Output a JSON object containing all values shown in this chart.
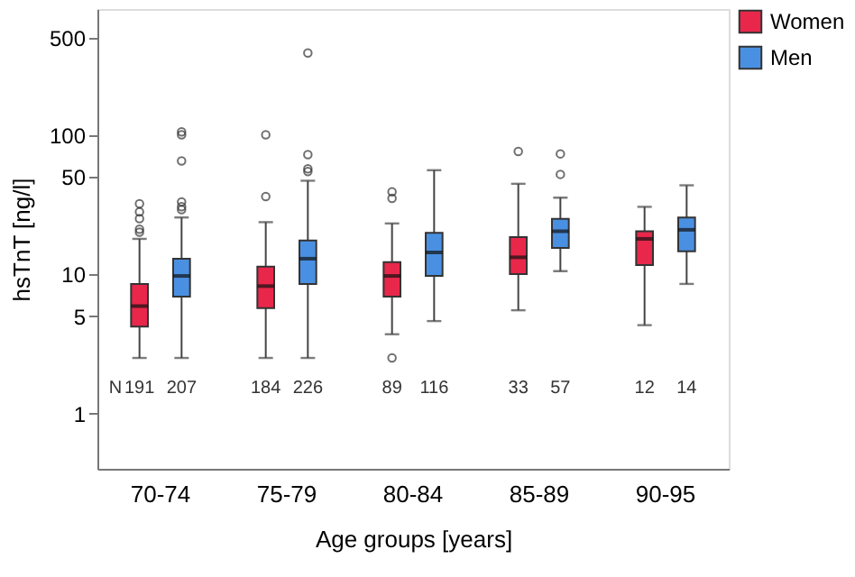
{
  "chart_data": {
    "type": "box",
    "xlabel": "Age groups [years]",
    "ylabel": "hsTnT [ng/l]",
    "categories": [
      "70-74",
      "75-79",
      "80-84",
      "85-89",
      "90-95"
    ],
    "log": true,
    "ylim": [
      0.4,
      800
    ],
    "yticks": [
      1,
      5,
      10,
      50,
      100,
      500
    ],
    "grid": false,
    "legend": "top right",
    "annotations": [
      "N"
    ],
    "series": [
      {
        "name": "Women",
        "color": "#e8274b",
        "value_labels": [
          "191",
          "184",
          "89",
          "33",
          "12"
        ],
        "boxes": [
          {
            "low": 2.5,
            "q1": 4.2,
            "median": 5.9,
            "q3": 8.5,
            "high": 17.9,
            "outliers": [
              20,
              21,
              25,
              28,
              32
            ]
          },
          {
            "low": 2.5,
            "q1": 5.7,
            "median": 8.2,
            "q3": 11.3,
            "high": 23.6,
            "outliers": [
              36,
              100
            ]
          },
          {
            "low": 3.7,
            "q1": 6.9,
            "median": 9.7,
            "q3": 12.2,
            "high": 23.1,
            "outliers": [
              2.5,
              35,
              39
            ]
          },
          {
            "low": 5.5,
            "q1": 10,
            "median": 13.2,
            "q3": 18.4,
            "high": 44.5,
            "outliers": [
              76
            ]
          },
          {
            "low": 4.3,
            "q1": 11.6,
            "median": 17.9,
            "q3": 20.3,
            "high": 30.4
          }
        ]
      },
      {
        "name": "Men",
        "color": "#4a90e2",
        "value_labels": [
          "207",
          "226",
          "116",
          "57",
          "14"
        ],
        "boxes": [
          {
            "low": 2.5,
            "q1": 6.9,
            "median": 9.7,
            "q3": 12.9,
            "high": 25.5,
            "outliers": [
              29,
              30.5,
              33,
              65,
              100,
              105
            ]
          },
          {
            "low": 2.5,
            "q1": 8.5,
            "median": 12.9,
            "q3": 17.4,
            "high": 46.8,
            "outliers": [
              54.5,
              57,
              72,
              387
            ]
          },
          {
            "low": 4.6,
            "q1": 9.7,
            "median": 14.3,
            "q3": 19.8,
            "high": 55.7
          },
          {
            "low": 10.5,
            "q1": 15.4,
            "median": 20.3,
            "q3": 24.9,
            "high": 35.4,
            "outliers": [
              52,
              73
            ]
          },
          {
            "low": 8.5,
            "q1": 14.6,
            "median": 20.8,
            "q3": 25.5,
            "high": 43.4
          }
        ]
      }
    ]
  }
}
